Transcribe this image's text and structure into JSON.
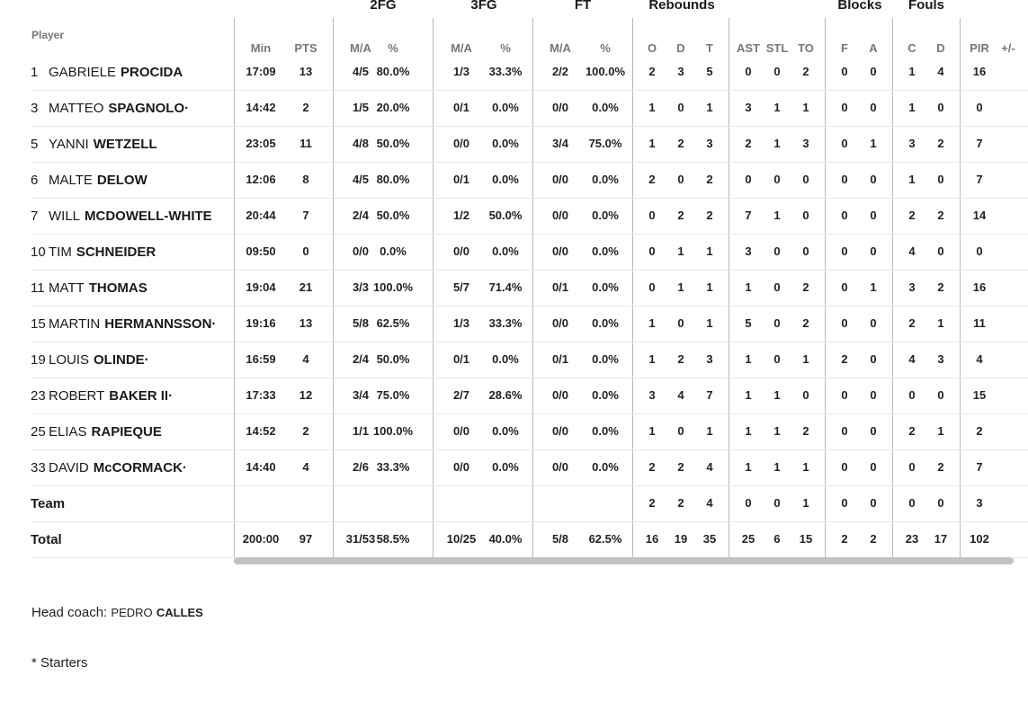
{
  "headers": {
    "player": "Player",
    "groups": [
      "2FG",
      "3FG",
      "FT",
      "Rebounds",
      "Blocks",
      "Fouls"
    ],
    "sub": [
      "Min",
      "PTS",
      "M/A",
      "%",
      "M/A",
      "%",
      "M/A",
      "%",
      "O",
      "D",
      "T",
      "AST",
      "STL",
      "TO",
      "F",
      "A",
      "C",
      "D",
      "PIR",
      "+/-"
    ]
  },
  "players": [
    {
      "num": "1",
      "first": "GABRIELE",
      "last": "PROCIDA",
      "stats": [
        "17:09",
        "13",
        "4/5",
        "80.0%",
        "1/3",
        "33.3%",
        "2/2",
        "100.0%",
        "2",
        "3",
        "5",
        "0",
        "0",
        "2",
        "0",
        "0",
        "1",
        "4",
        "16",
        ""
      ]
    },
    {
      "num": "3",
      "first": "MATTEO",
      "last": "SPAGNOLO·",
      "stats": [
        "14:42",
        "2",
        "1/5",
        "20.0%",
        "0/1",
        "0.0%",
        "0/0",
        "0.0%",
        "1",
        "0",
        "1",
        "3",
        "1",
        "1",
        "0",
        "0",
        "1",
        "0",
        "0",
        ""
      ]
    },
    {
      "num": "5",
      "first": "YANNI",
      "last": "WETZELL",
      "stats": [
        "23:05",
        "11",
        "4/8",
        "50.0%",
        "0/0",
        "0.0%",
        "3/4",
        "75.0%",
        "1",
        "2",
        "3",
        "2",
        "1",
        "3",
        "0",
        "1",
        "3",
        "2",
        "7",
        ""
      ]
    },
    {
      "num": "6",
      "first": "MALTE",
      "last": "DELOW",
      "stats": [
        "12:06",
        "8",
        "4/5",
        "80.0%",
        "0/1",
        "0.0%",
        "0/0",
        "0.0%",
        "2",
        "0",
        "2",
        "0",
        "0",
        "0",
        "0",
        "0",
        "1",
        "0",
        "7",
        ""
      ]
    },
    {
      "num": "7",
      "first": "WILL",
      "last": "MCDOWELL-WHITE",
      "stats": [
        "20:44",
        "7",
        "2/4",
        "50.0%",
        "1/2",
        "50.0%",
        "0/0",
        "0.0%",
        "0",
        "2",
        "2",
        "7",
        "1",
        "0",
        "0",
        "0",
        "2",
        "2",
        "14",
        ""
      ]
    },
    {
      "num": "10",
      "first": "TIM",
      "last": "SCHNEIDER",
      "stats": [
        "09:50",
        "0",
        "0/0",
        "0.0%",
        "0/0",
        "0.0%",
        "0/0",
        "0.0%",
        "0",
        "1",
        "1",
        "3",
        "0",
        "0",
        "0",
        "0",
        "4",
        "0",
        "0",
        ""
      ]
    },
    {
      "num": "11",
      "first": "MATT",
      "last": "THOMAS",
      "stats": [
        "19:04",
        "21",
        "3/3",
        "100.0%",
        "5/7",
        "71.4%",
        "0/1",
        "0.0%",
        "0",
        "1",
        "1",
        "1",
        "0",
        "2",
        "0",
        "1",
        "3",
        "2",
        "16",
        ""
      ]
    },
    {
      "num": "15",
      "first": "MARTIN",
      "last": "HERMANNSSON·",
      "stats": [
        "19:16",
        "13",
        "5/8",
        "62.5%",
        "1/3",
        "33.3%",
        "0/0",
        "0.0%",
        "1",
        "0",
        "1",
        "5",
        "0",
        "2",
        "0",
        "0",
        "2",
        "1",
        "11",
        ""
      ]
    },
    {
      "num": "19",
      "first": "LOUIS",
      "last": "OLINDE·",
      "stats": [
        "16:59",
        "4",
        "2/4",
        "50.0%",
        "0/1",
        "0.0%",
        "0/1",
        "0.0%",
        "1",
        "2",
        "3",
        "1",
        "0",
        "1",
        "2",
        "0",
        "4",
        "3",
        "4",
        ""
      ]
    },
    {
      "num": "23",
      "first": "ROBERT",
      "last": "BAKER II·",
      "stats": [
        "17:33",
        "12",
        "3/4",
        "75.0%",
        "2/7",
        "28.6%",
        "0/0",
        "0.0%",
        "3",
        "4",
        "7",
        "1",
        "1",
        "0",
        "0",
        "0",
        "0",
        "0",
        "15",
        ""
      ]
    },
    {
      "num": "25",
      "first": "ELIAS",
      "last": "RAPIEQUE",
      "stats": [
        "14:52",
        "2",
        "1/1",
        "100.0%",
        "0/0",
        "0.0%",
        "0/0",
        "0.0%",
        "1",
        "0",
        "1",
        "1",
        "1",
        "2",
        "0",
        "0",
        "2",
        "1",
        "2",
        ""
      ]
    },
    {
      "num": "33",
      "first": "DAVID",
      "last": "McCORMACK·",
      "stats": [
        "14:40",
        "4",
        "2/6",
        "33.3%",
        "0/0",
        "0.0%",
        "0/0",
        "0.0%",
        "2",
        "2",
        "4",
        "1",
        "1",
        "1",
        "0",
        "0",
        "0",
        "2",
        "7",
        ""
      ]
    }
  ],
  "team": {
    "label": "Team",
    "stats": [
      "",
      "",
      "",
      "",
      "",
      "",
      "",
      "",
      "2",
      "2",
      "4",
      "0",
      "0",
      "1",
      "0",
      "0",
      "0",
      "0",
      "3",
      ""
    ]
  },
  "total": {
    "label": "Total",
    "stats": [
      "200:00",
      "97",
      "31/53",
      "58.5%",
      "10/25",
      "40.0%",
      "5/8",
      "62.5%",
      "16",
      "19",
      "35",
      "25",
      "6",
      "15",
      "2",
      "2",
      "23",
      "17",
      "102",
      ""
    ]
  },
  "coach": {
    "label": "Head coach:",
    "first": "PEDRO",
    "last": "CALLES"
  },
  "footnote": "* Starters"
}
